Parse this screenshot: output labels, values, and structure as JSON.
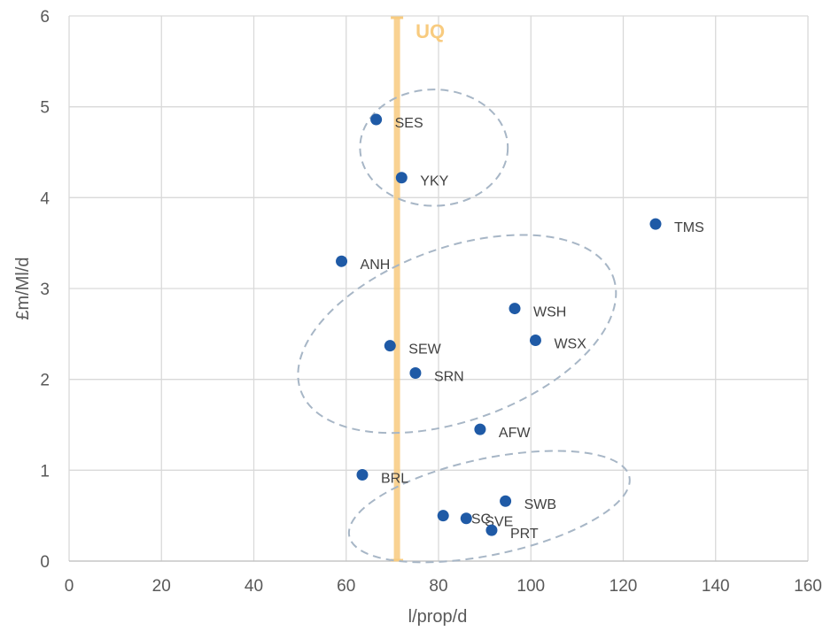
{
  "chart_data": {
    "type": "scatter",
    "xlabel": "l/prop/d",
    "ylabel": "£m/Ml/d",
    "xlim": [
      0,
      160
    ],
    "ylim": [
      0,
      6
    ],
    "xticks": [
      "0",
      "20",
      "40",
      "60",
      "80",
      "100",
      "120",
      "140",
      "160"
    ],
    "yticks": [
      "0",
      "1",
      "2",
      "3",
      "4",
      "5",
      "6"
    ],
    "grid": true,
    "point_color": "#1F5AA6",
    "points": [
      {
        "label": "SES",
        "x": 66.5,
        "y": 4.86
      },
      {
        "label": "YKY",
        "x": 72,
        "y": 4.22
      },
      {
        "label": "TMS",
        "x": 127,
        "y": 3.71
      },
      {
        "label": "ANH",
        "x": 59,
        "y": 3.3
      },
      {
        "label": "WSH",
        "x": 96.5,
        "y": 2.78
      },
      {
        "label": "WSX",
        "x": 101,
        "y": 2.43
      },
      {
        "label": "SEW",
        "x": 69.5,
        "y": 2.37
      },
      {
        "label": "SRN",
        "x": 75,
        "y": 2.07
      },
      {
        "label": "AFW",
        "x": 89,
        "y": 1.45
      },
      {
        "label": "BRL",
        "x": 63.5,
        "y": 0.95
      },
      {
        "label": "SWB",
        "x": 94.5,
        "y": 0.66
      },
      {
        "label": "SSC",
        "x": 81,
        "y": 0.5
      },
      {
        "label": "SVE",
        "x": 86,
        "y": 0.47
      },
      {
        "label": "PRT",
        "x": 91.5,
        "y": 0.34
      }
    ],
    "reference_line": {
      "label": "UQ",
      "x": 71,
      "color": "#F8CB7F"
    },
    "clusters": [
      {
        "cx": 79,
        "cy": 4.55,
        "rx": 16,
        "ry": 0.64,
        "angle": 0
      },
      {
        "cx": 84,
        "cy": 2.5,
        "rx": 36,
        "ry": 0.95,
        "angle": -20
      },
      {
        "cx": 91,
        "cy": 0.6,
        "rx": 31,
        "ry": 0.53,
        "angle": -12
      }
    ],
    "cluster_color": "#A7B6C6"
  }
}
